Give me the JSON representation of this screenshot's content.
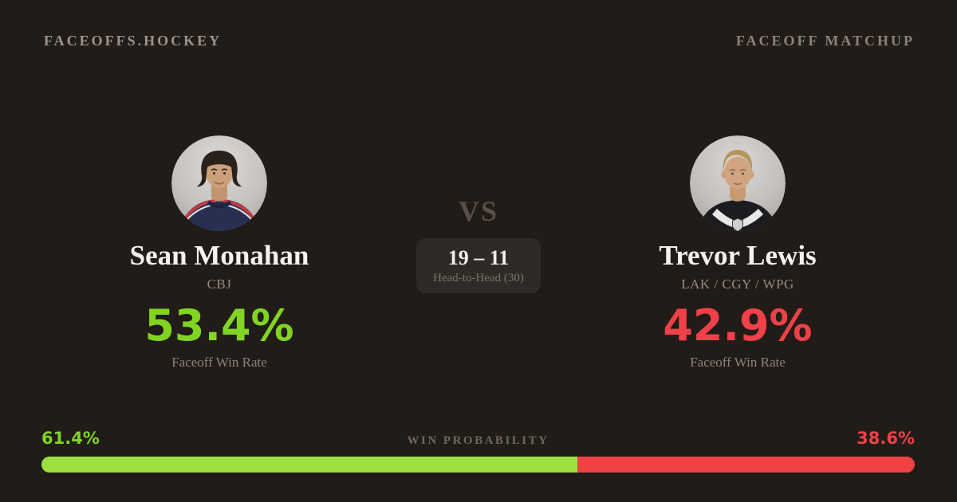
{
  "colors": {
    "background": "#211c18",
    "green_text": "#82d422",
    "red_text": "#f04148",
    "green_bar": "#9ee03f",
    "red_bar": "#ee4244"
  },
  "header": {
    "brand": "FACEOFFS.HOCKEY",
    "context_label": "FACEOFF MATCHUP"
  },
  "matchup": {
    "vs_label": "VS",
    "head_to_head_score": "19 – 11",
    "head_to_head_label": "Head-to-Head (30)"
  },
  "players": {
    "left": {
      "name": "Sean Monahan",
      "team": "CBJ",
      "faceoff_win_rate": "53.4%",
      "stat_label": "Faceoff Win Rate",
      "photo": "sean-monahan-headshot"
    },
    "right": {
      "name": "Trevor Lewis",
      "team": "LAK / CGY / WPG",
      "faceoff_win_rate": "42.9%",
      "stat_label": "Faceoff Win Rate",
      "photo": "trevor-lewis-headshot"
    }
  },
  "win_probability": {
    "label": "WIN PROBABILITY",
    "left_value": "61.4%",
    "right_value": "38.6%",
    "left_percent": 61.4,
    "right_percent": 38.6
  }
}
